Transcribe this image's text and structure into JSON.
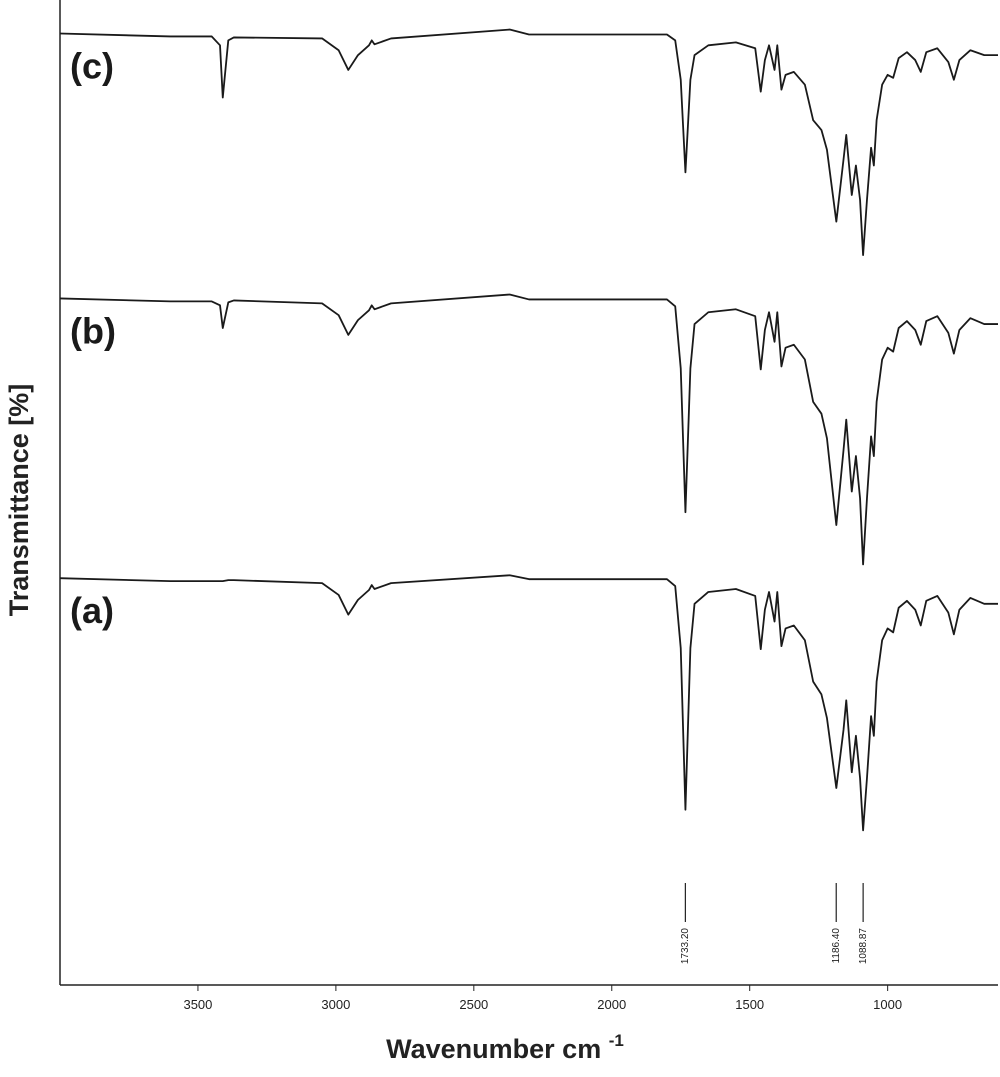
{
  "chart_data": {
    "type": "line",
    "x_label": "Wavenumber cm",
    "x_label_sup": "-1",
    "y_label": "Transmittance [%]",
    "xlim": [
      4000,
      600
    ],
    "ylim": [
      0,
      100
    ],
    "xticks": [
      3500,
      3000,
      2500,
      2000,
      1500,
      1000
    ],
    "x": [
      4000,
      3600,
      3450,
      3420,
      3410,
      3390,
      3370,
      3050,
      2990,
      2955,
      2920,
      2880,
      2870,
      2860,
      2800,
      2370,
      2300,
      1800,
      1770,
      1750,
      1733,
      1715,
      1700,
      1650,
      1550,
      1480,
      1460,
      1445,
      1430,
      1410,
      1400,
      1385,
      1370,
      1340,
      1300,
      1270,
      1240,
      1220,
      1186,
      1160,
      1150,
      1130,
      1115,
      1100,
      1089,
      1075,
      1060,
      1050,
      1040,
      1020,
      1000,
      980,
      960,
      930,
      900,
      880,
      860,
      820,
      780,
      760,
      740,
      700,
      650,
      600
    ],
    "series": [
      {
        "name": "(c)",
        "color": "#1a1a1a",
        "values": [
          96.6,
          96.3,
          96.3,
          95.4,
          90.1,
          95.9,
          96.2,
          96.1,
          94.9,
          92.9,
          94.4,
          95.4,
          95.9,
          95.5,
          96.1,
          97.0,
          96.5,
          96.5,
          95.9,
          91.9,
          82.5,
          91.9,
          94.4,
          95.4,
          95.7,
          95.1,
          90.7,
          93.9,
          95.4,
          92.9,
          95.4,
          90.9,
          92.4,
          92.7,
          91.4,
          87.8,
          86.8,
          84.8,
          77.5,
          83.8,
          86.3,
          80.2,
          83.2,
          79.7,
          74.1,
          79.7,
          85.0,
          83.2,
          87.8,
          91.4,
          92.4,
          92.1,
          94.1,
          94.7,
          93.9,
          92.7,
          94.7,
          95.1,
          93.7,
          91.9,
          93.9,
          94.9,
          94.4,
          94.4
        ]
      },
      {
        "name": "(b)",
        "color": "#1a1a1a",
        "values": [
          69.7,
          69.4,
          69.4,
          69.0,
          66.7,
          69.3,
          69.5,
          69.2,
          68.0,
          66.0,
          67.5,
          68.5,
          69.0,
          68.6,
          69.2,
          70.1,
          69.6,
          69.6,
          68.9,
          62.6,
          48.0,
          62.6,
          67.1,
          68.3,
          68.6,
          67.9,
          62.5,
          66.5,
          68.3,
          65.3,
          68.3,
          62.8,
          64.7,
          65.0,
          63.5,
          59.2,
          58.0,
          55.5,
          46.7,
          54.3,
          57.4,
          50.1,
          53.7,
          49.4,
          42.7,
          49.4,
          55.7,
          53.7,
          59.2,
          63.5,
          64.7,
          64.3,
          66.7,
          67.4,
          66.5,
          65.0,
          67.4,
          67.9,
          66.2,
          64.1,
          66.5,
          67.7,
          67.1,
          67.1
        ]
      },
      {
        "name": "(a)",
        "color": "#1a1a1a",
        "values": [
          41.3,
          41.0,
          41.0,
          41.0,
          41.0,
          41.1,
          41.1,
          40.8,
          39.6,
          37.6,
          39.1,
          40.1,
          40.6,
          40.2,
          40.8,
          41.6,
          41.2,
          41.2,
          40.5,
          34.2,
          17.8,
          34.2,
          38.7,
          39.9,
          40.2,
          39.5,
          34.1,
          38.1,
          39.9,
          36.9,
          39.9,
          34.4,
          36.2,
          36.5,
          35.0,
          30.8,
          29.5,
          27.1,
          20.0,
          25.9,
          28.9,
          21.6,
          25.3,
          21.0,
          15.7,
          21.0,
          27.3,
          25.3,
          30.8,
          35.0,
          36.2,
          35.8,
          38.3,
          39.0,
          38.1,
          36.5,
          39.0,
          39.5,
          37.8,
          35.6,
          38.1,
          39.3,
          38.7,
          38.7
        ]
      }
    ],
    "peak_labels": [
      {
        "value": 1733.2,
        "label": "1733.20"
      },
      {
        "value": 1186.4,
        "label": "1186.40"
      },
      {
        "value": 1088.87,
        "label": "1088.87"
      }
    ]
  }
}
